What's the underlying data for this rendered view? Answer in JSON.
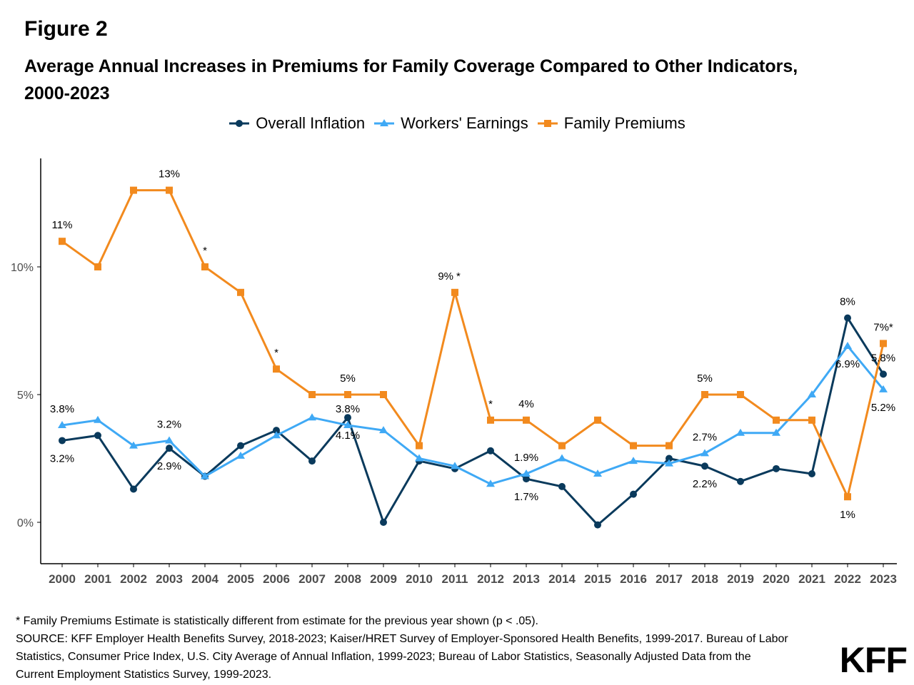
{
  "figure_label": "Figure 2",
  "title_line1": "Average Annual Increases in Premiums for Family Coverage Compared to Other Indicators,",
  "title_line2": "2000-2023",
  "footnote": {
    "line1": "* Family Premiums Estimate is statistically different from estimate for the previous year shown (p < .05).",
    "line2": "SOURCE: KFF Employer Health Benefits Survey, 2018-2023; Kaiser/HRET Survey of Employer-Sponsored Health Benefits, 1999-2017. Bureau of Labor",
    "line3": "Statistics, Consumer Price Index, U.S. City Average of Annual Inflation, 1999-2023; Bureau of Labor Statistics, Seasonally Adjusted Data from the",
    "line4": "Current Employment Statistics Survey, 1999-2023."
  },
  "logo": "KFF",
  "colors": {
    "inflation": "#0a3a5c",
    "earnings": "#3fa9f5",
    "premiums": "#f28a1e"
  },
  "chart_data": {
    "type": "line",
    "x": [
      "2000",
      "2001",
      "2002",
      "2003",
      "2004",
      "2005",
      "2006",
      "2007",
      "2008",
      "2009",
      "2010",
      "2011",
      "2012",
      "2013",
      "2014",
      "2015",
      "2016",
      "2017",
      "2018",
      "2019",
      "2020",
      "2021",
      "2022",
      "2023"
    ],
    "ylim": [
      -1.6,
      14.2
    ],
    "yticks": [
      0,
      5,
      10
    ],
    "ytick_labels": [
      "0%",
      "5%",
      "10%"
    ],
    "legend_position": "top",
    "grid": false,
    "series": [
      {
        "name": "Overall Inflation",
        "marker": "circle",
        "values": [
          3.2,
          3.4,
          1.3,
          2.9,
          1.8,
          3.0,
          3.6,
          2.4,
          4.1,
          0.0,
          2.4,
          2.1,
          2.8,
          1.7,
          1.4,
          -0.1,
          1.1,
          2.5,
          2.2,
          1.6,
          2.1,
          1.9,
          8.0,
          5.8
        ]
      },
      {
        "name": "Workers' Earnings",
        "marker": "triangle",
        "values": [
          3.8,
          4.0,
          3.0,
          3.2,
          1.8,
          2.6,
          3.4,
          4.1,
          3.8,
          3.6,
          2.5,
          2.2,
          1.5,
          1.9,
          2.5,
          1.9,
          2.4,
          2.3,
          2.7,
          3.5,
          3.5,
          5.0,
          6.9,
          5.2
        ]
      },
      {
        "name": "Family Premiums",
        "marker": "square",
        "values": [
          11,
          10,
          13,
          13,
          10,
          9,
          6,
          5,
          5,
          5,
          3,
          9,
          4,
          4,
          3,
          4,
          3,
          3,
          5,
          5,
          4,
          4,
          1,
          7
        ]
      }
    ],
    "annotations": [
      {
        "text": "11%",
        "series": "Family Premiums",
        "year": "2000",
        "pos": "above"
      },
      {
        "text": "13%",
        "series": "Family Premiums",
        "year": "2003",
        "pos": "above"
      },
      {
        "text": "*",
        "series": "Family Premiums",
        "year": "2004",
        "pos": "above"
      },
      {
        "text": "*",
        "series": "Family Premiums",
        "year": "2006",
        "pos": "above"
      },
      {
        "text": "5%",
        "series": "Family Premiums",
        "year": "2008",
        "pos": "above"
      },
      {
        "text": "9%",
        "series": "Family Premiums",
        "year": "2011",
        "pos": "above-left"
      },
      {
        "text": "*",
        "series": "Family Premiums",
        "year": "2011",
        "pos": "above-right"
      },
      {
        "text": "*",
        "series": "Family Premiums",
        "year": "2012",
        "pos": "above"
      },
      {
        "text": "4%",
        "series": "Family Premiums",
        "year": "2013",
        "pos": "above"
      },
      {
        "text": "5%",
        "series": "Family Premiums",
        "year": "2018",
        "pos": "above"
      },
      {
        "text": "1%",
        "series": "Family Premiums",
        "year": "2022",
        "pos": "below"
      },
      {
        "text": "7%*",
        "series": "Family Premiums",
        "year": "2023",
        "pos": "above"
      },
      {
        "text": "3.8%",
        "series": "Workers' Earnings",
        "year": "2000",
        "pos": "above"
      },
      {
        "text": "3.2%",
        "series": "Workers' Earnings",
        "year": "2003",
        "pos": "above"
      },
      {
        "text": "3.8%",
        "series": "Workers' Earnings",
        "year": "2008",
        "pos": "above"
      },
      {
        "text": "1.9%",
        "series": "Workers' Earnings",
        "year": "2013",
        "pos": "above"
      },
      {
        "text": "2.7%",
        "series": "Workers' Earnings",
        "year": "2018",
        "pos": "above"
      },
      {
        "text": "6.9%",
        "series": "Workers' Earnings",
        "year": "2022",
        "pos": "below"
      },
      {
        "text": "5.2%",
        "series": "Workers' Earnings",
        "year": "2023",
        "pos": "below"
      },
      {
        "text": "3.2%",
        "series": "Overall Inflation",
        "year": "2000",
        "pos": "below"
      },
      {
        "text": "2.9%",
        "series": "Overall Inflation",
        "year": "2003",
        "pos": "below"
      },
      {
        "text": "4.1%",
        "series": "Overall Inflation",
        "year": "2008",
        "pos": "below"
      },
      {
        "text": "1.7%",
        "series": "Overall Inflation",
        "year": "2013",
        "pos": "below"
      },
      {
        "text": "2.2%",
        "series": "Overall Inflation",
        "year": "2018",
        "pos": "below"
      },
      {
        "text": "8%",
        "series": "Overall Inflation",
        "year": "2022",
        "pos": "above"
      },
      {
        "text": "5.8%",
        "series": "Overall Inflation",
        "year": "2023",
        "pos": "above"
      }
    ]
  }
}
